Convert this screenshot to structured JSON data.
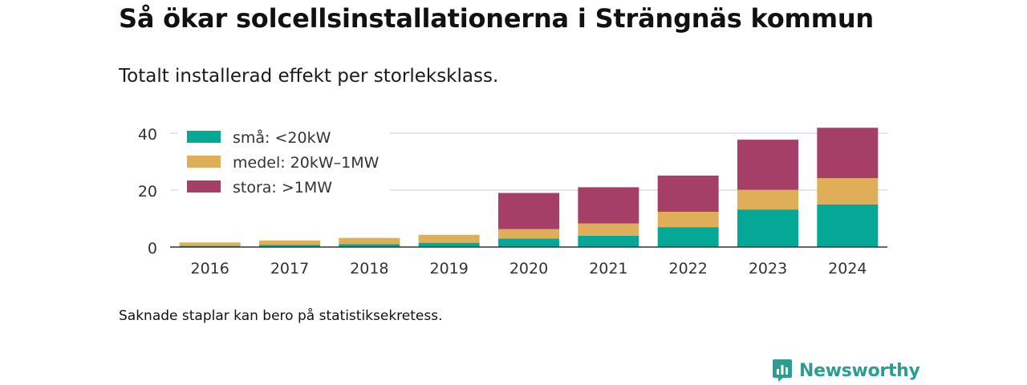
{
  "title": "Så ökar solcellsinstallationerna i Strängnäs kommun",
  "subtitle": "Totalt installerad effekt per storleksklass.",
  "footnote": "Saknade staplar kan bero på statistiksekretess.",
  "brand": {
    "name": "Newsworthy",
    "icon": "newsworthy-logo-icon",
    "color": "#2d9c92"
  },
  "chart_data": {
    "type": "bar",
    "stacked": true,
    "categories": [
      "2016",
      "2017",
      "2018",
      "2019",
      "2020",
      "2021",
      "2022",
      "2023",
      "2024"
    ],
    "series": [
      {
        "name": "små: <20kW",
        "color": "#05a797",
        "values": [
          0.4,
          0.7,
          1.0,
          1.5,
          3.0,
          4.0,
          7.0,
          13.2,
          15.0
        ]
      },
      {
        "name": "medel: 20kW–1MW",
        "color": "#deae58",
        "values": [
          1.2,
          1.6,
          2.2,
          2.8,
          3.3,
          4.3,
          5.4,
          6.9,
          9.2
        ]
      },
      {
        "name": "stora: >1MW",
        "color": "#a53f68",
        "values": [
          0.0,
          0.0,
          0.0,
          0.0,
          12.7,
          12.7,
          12.7,
          17.6,
          17.7
        ]
      }
    ],
    "yticks": [
      0,
      20,
      40
    ],
    "ylim": [
      0,
      44
    ],
    "grid": true,
    "legend_position": "top-left",
    "xlabel": "",
    "ylabel": ""
  }
}
